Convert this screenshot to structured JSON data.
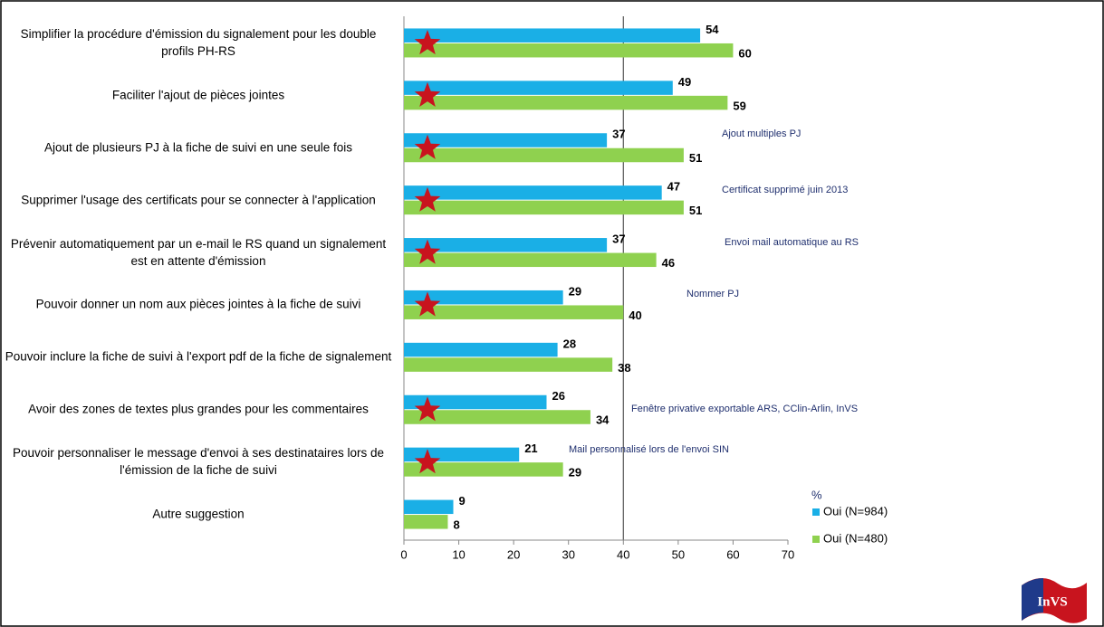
{
  "chart_data": {
    "type": "bar",
    "orientation": "horizontal",
    "categories": [
      "Simplifier la procédure d'émission du signalement pour les double profils PH-RS",
      "Faciliter l'ajout de pièces jointes",
      "Ajout de plusieurs PJ à la fiche de suivi en une seule fois",
      "Supprimer l'usage des certificats pour se connecter à l'application",
      "Prévenir automatiquement par un e-mail le RS quand un signalement est en attente d'émission",
      "Pouvoir donner un nom aux pièces jointes à la fiche de suivi",
      "Pouvoir inclure la fiche de suivi à l'export pdf de la fiche de signalement",
      "Avoir des zones de textes plus grandes pour les commentaires",
      "Pouvoir personnaliser le message d'envoi à ses destinataires lors de l'émission de la fiche de suivi",
      "Autre suggestion"
    ],
    "series": [
      {
        "name": "Oui (N=984)",
        "color": "#1aafe6",
        "values": [
          54,
          49,
          37,
          47,
          37,
          29,
          28,
          26,
          21,
          9
        ]
      },
      {
        "name": "Oui (N=480)",
        "color": "#8fd14f",
        "values": [
          60,
          59,
          51,
          51,
          46,
          40,
          38,
          34,
          29,
          8
        ]
      }
    ],
    "xlim": [
      0,
      70
    ],
    "xticks": [
      0,
      10,
      20,
      30,
      40,
      50,
      60,
      70
    ],
    "reference_line": 40,
    "legend_title": "%",
    "legend_position": "bottom-right",
    "annotations": [
      "Ajout multiples PJ",
      "Certificat supprimé juin 2013",
      "Envoi mail automatique au RS",
      "Nommer PJ",
      "Fenêtre privative exportable ARS, CClin-Arlin, InVS",
      "Mail personnalisé lors de l'envoi SIN"
    ],
    "logo": "InVS"
  }
}
